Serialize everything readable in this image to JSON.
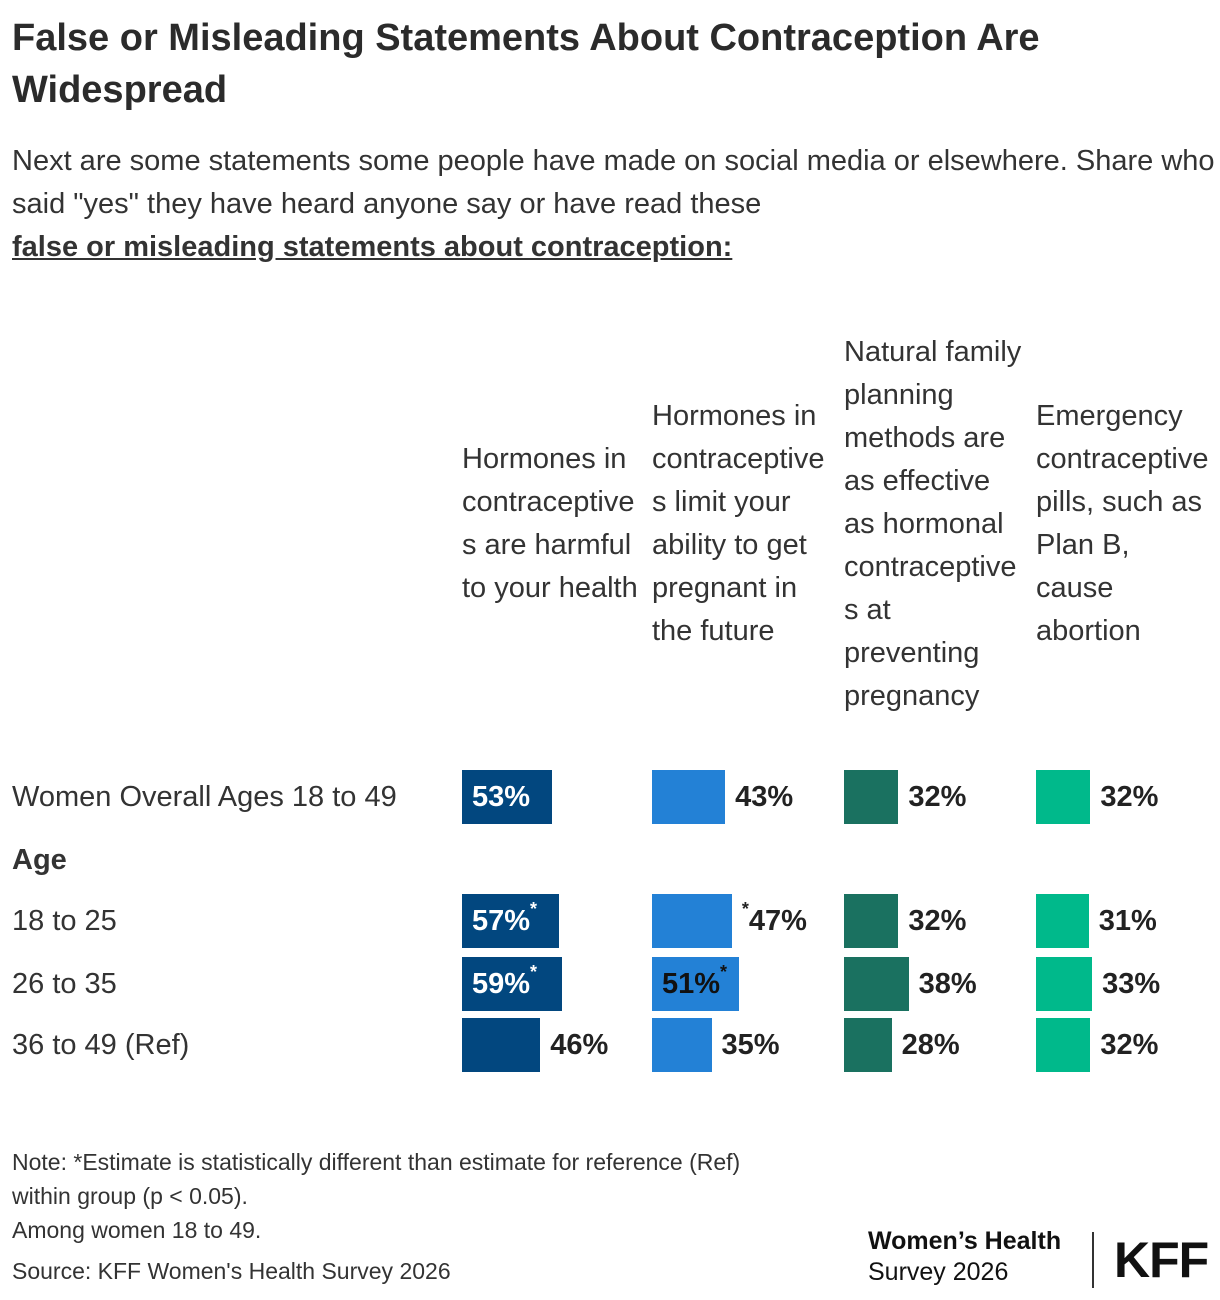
{
  "chart_data": {
    "type": "bar",
    "title": "False or Misleading Statements About Contraception Are Widespread",
    "subtitle": "Next are some statements some people have made on social media or elsewhere. Share who said \"yes\" they have heard anyone say or have read these",
    "subtitle_emphasis": "false or misleading statements about contraception:",
    "categories": [
      "Women Overall Ages 18 to 49",
      "Age",
      "18 to 25",
      "26 to 35",
      "36 to 49 (Ref)"
    ],
    "series": [
      {
        "name": "Hormones in contraceptives are harmful to your health",
        "color": "#02477f",
        "values": [
          53,
          null,
          57,
          59,
          46
        ],
        "value_labels": [
          "53%",
          null,
          "57%*",
          "59%*",
          "46%"
        ]
      },
      {
        "name": "Hormones in contraceptives limit your ability to get pregnant in the future",
        "color": "#2381d6",
        "values": [
          43,
          null,
          47,
          51,
          35
        ],
        "value_labels": [
          "43%",
          null,
          "*47%",
          "51%*",
          "35%"
        ]
      },
      {
        "name": "Natural family planning methods are as effective as hormonal contraceptives at preventing pregnancy",
        "color": "#1a7160",
        "values": [
          32,
          null,
          32,
          38,
          28
        ],
        "value_labels": [
          "32%",
          null,
          "32%",
          "38%",
          "28%"
        ]
      },
      {
        "name": "Emergency contraceptive pills, such as Plan B, cause abortion",
        "color": "#00b98b",
        "values": [
          32,
          null,
          31,
          33,
          32
        ],
        "value_labels": [
          "32%",
          null,
          "31%",
          "33%",
          "32%"
        ]
      }
    ],
    "notes": [
      "Note: *Estimate is statistically different than estimate for reference (Ref)",
      "within group (p < 0.05).",
      "Among women 18 to 49.",
      "Source: KFF Women's Health Survey 2026"
    ],
    "brand": [
      "Women’s Health",
      "Survey 2026"
    ],
    "logo": "KFF"
  }
}
